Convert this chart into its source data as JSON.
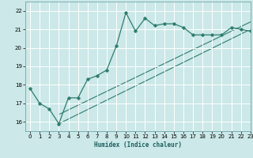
{
  "title": "",
  "xlabel": "Humidex (Indice chaleur)",
  "xlim": [
    -0.5,
    23
  ],
  "ylim": [
    15.5,
    22.5
  ],
  "yticks": [
    16,
    17,
    18,
    19,
    20,
    21,
    22
  ],
  "xticks": [
    0,
    1,
    2,
    3,
    4,
    5,
    6,
    7,
    8,
    9,
    10,
    11,
    12,
    13,
    14,
    15,
    16,
    17,
    18,
    19,
    20,
    21,
    22,
    23
  ],
  "line_color": "#2e7d6e",
  "bg_color": "#cce8e8",
  "grid_color": "#ffffff",
  "line1_x": [
    0,
    1,
    2,
    3,
    4,
    5,
    6,
    7,
    8,
    9,
    10,
    11,
    12,
    13,
    14,
    15,
    16,
    17,
    18,
    19,
    20,
    21,
    22,
    23
  ],
  "line1_y": [
    17.8,
    17.0,
    16.7,
    15.9,
    17.3,
    17.3,
    18.3,
    18.5,
    18.8,
    20.1,
    21.9,
    20.9,
    21.6,
    21.2,
    21.3,
    21.3,
    21.1,
    20.7,
    20.7,
    20.7,
    20.7,
    21.1,
    21.0,
    20.9
  ],
  "line2_x": [
    3,
    23
  ],
  "line2_y": [
    15.9,
    21.0
  ],
  "line3_x": [
    3,
    23
  ],
  "line3_y": [
    16.4,
    21.4
  ]
}
